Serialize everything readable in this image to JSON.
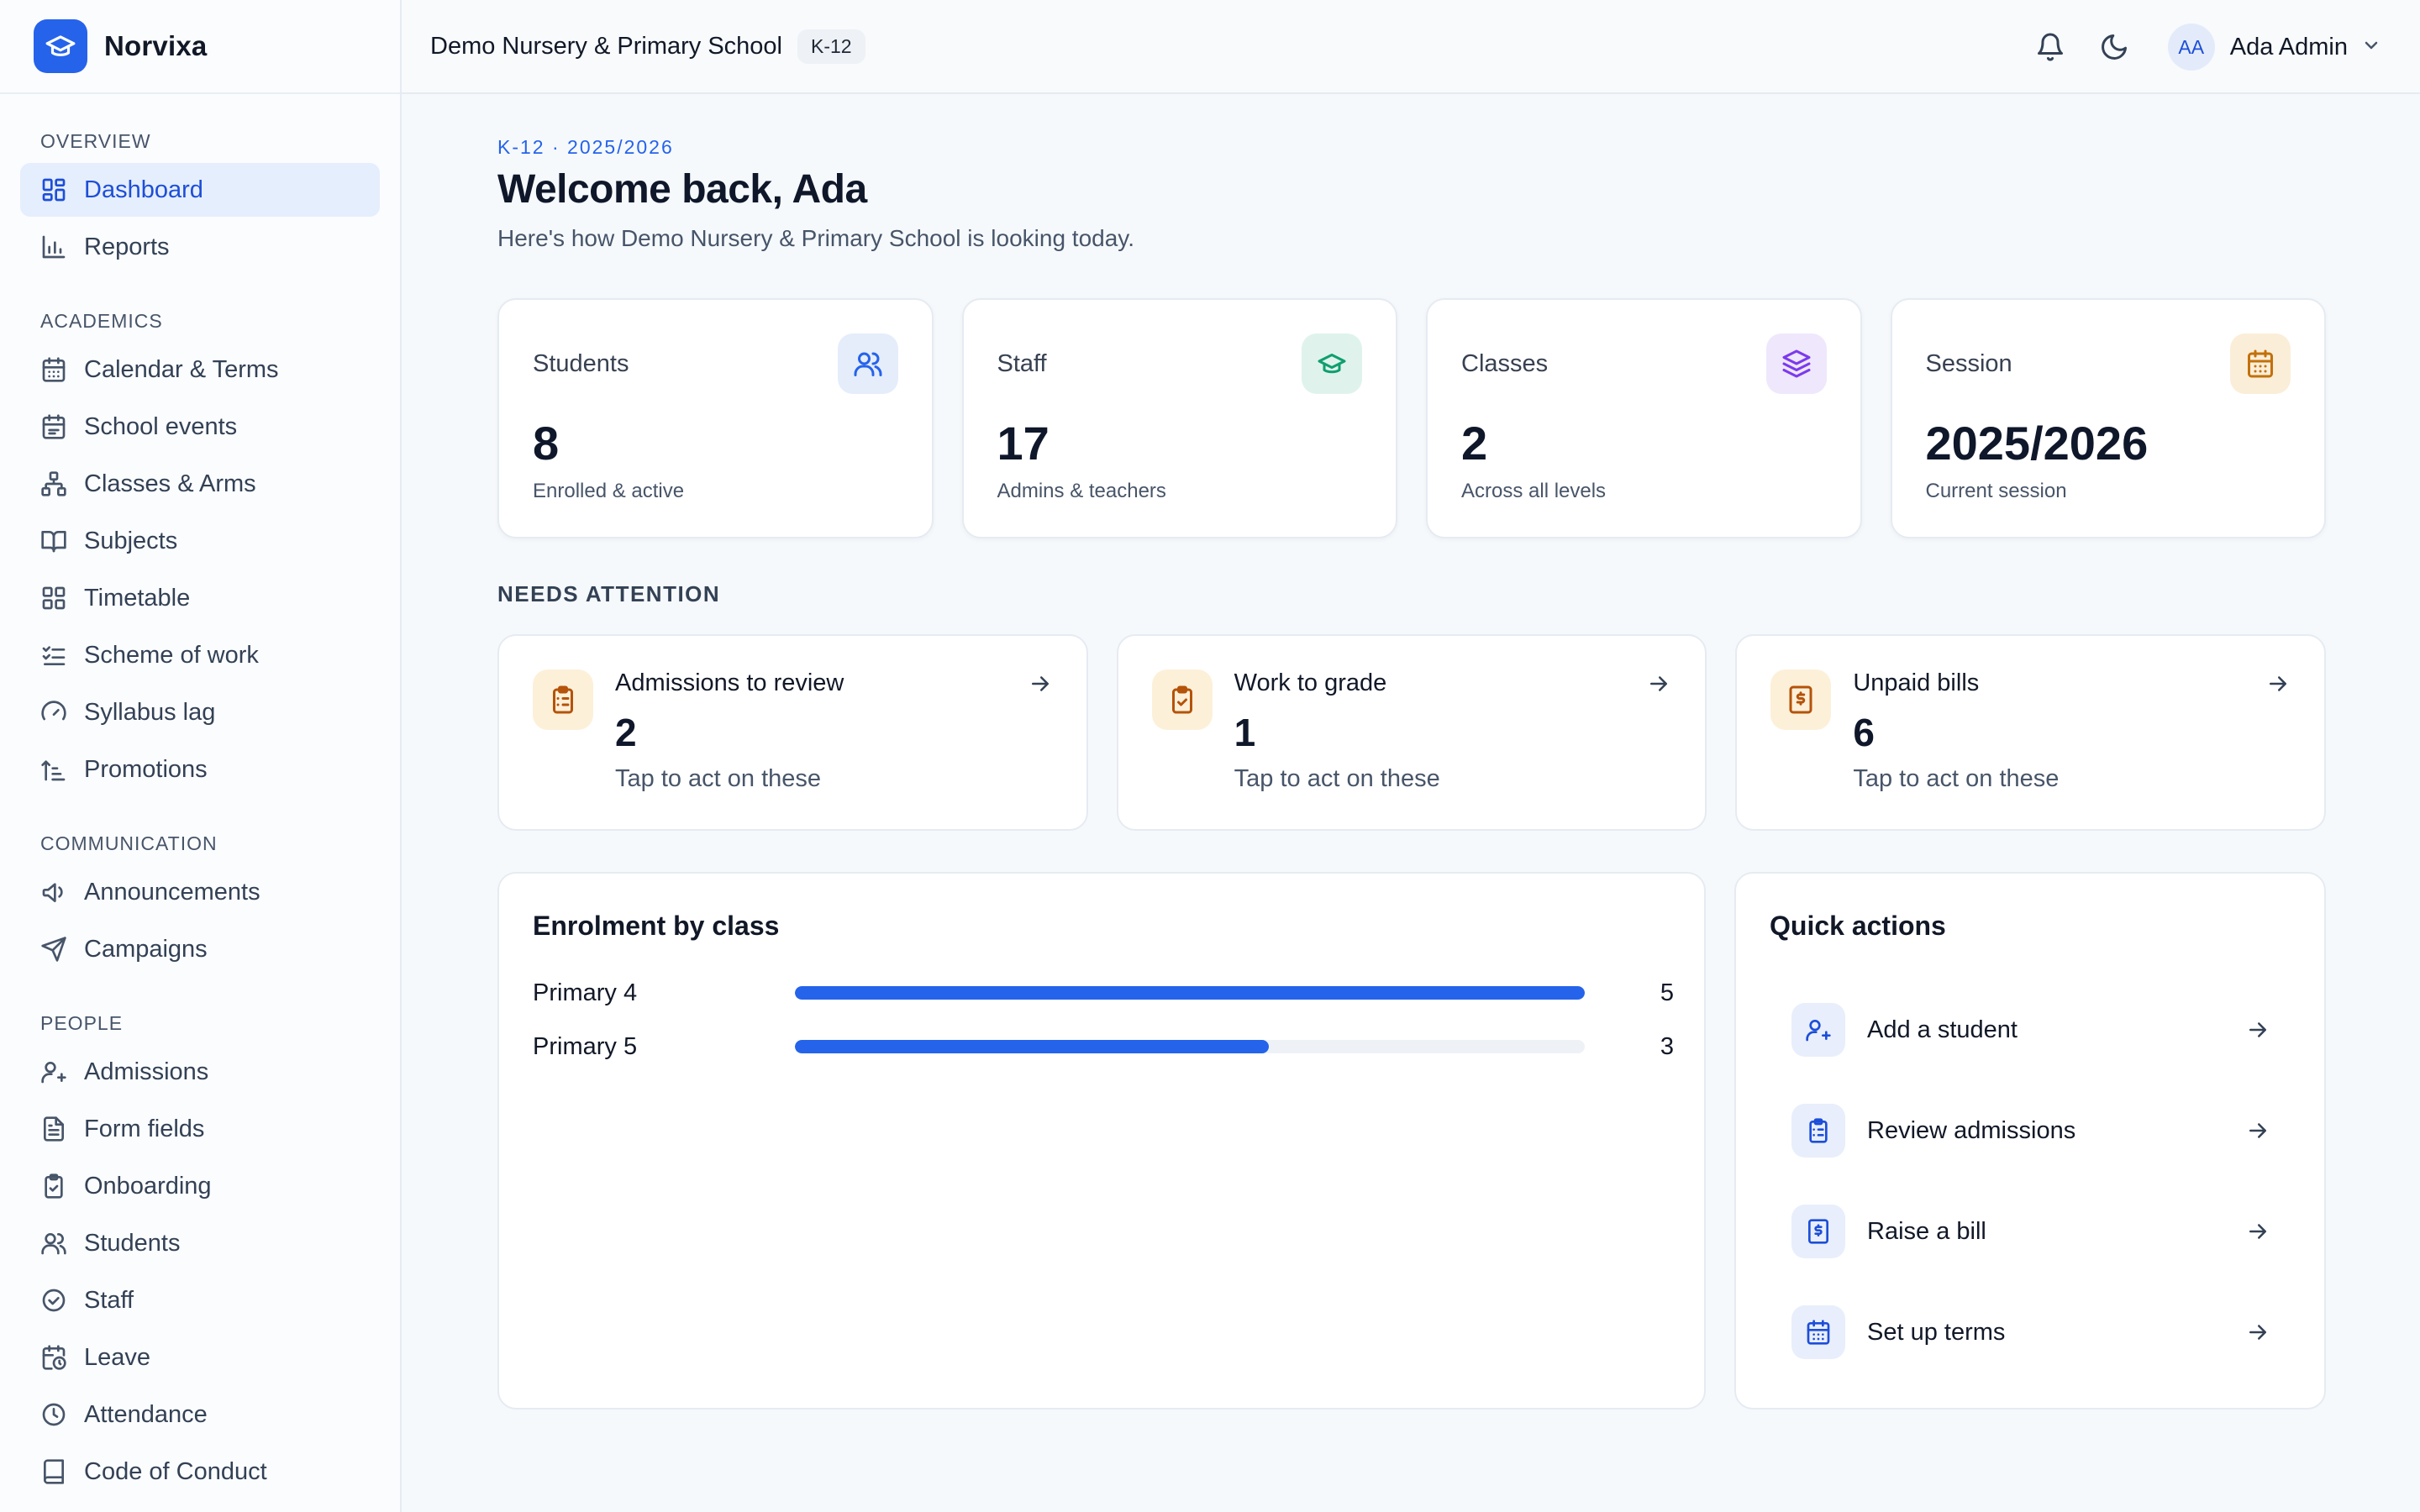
{
  "brand": {
    "name": "Norvixa"
  },
  "sidebar": {
    "sections": [
      {
        "label": "OVERVIEW",
        "items": [
          {
            "label": "Dashboard",
            "icon": "layout-grid-icon",
            "active": true
          },
          {
            "label": "Reports",
            "icon": "bar-chart-icon"
          }
        ]
      },
      {
        "label": "ACADEMICS",
        "items": [
          {
            "label": "Calendar & Terms",
            "icon": "calendar-icon"
          },
          {
            "label": "School events",
            "icon": "calendar-event-icon"
          },
          {
            "label": "Classes & Arms",
            "icon": "hierarchy-icon"
          },
          {
            "label": "Subjects",
            "icon": "book-open-icon"
          },
          {
            "label": "Timetable",
            "icon": "grid-icon"
          },
          {
            "label": "Scheme of work",
            "icon": "list-check-icon"
          },
          {
            "label": "Syllabus lag",
            "icon": "gauge-icon"
          },
          {
            "label": "Promotions",
            "icon": "arrow-up-steps-icon"
          }
        ]
      },
      {
        "label": "COMMUNICATION",
        "items": [
          {
            "label": "Announcements",
            "icon": "megaphone-icon"
          },
          {
            "label": "Campaigns",
            "icon": "send-icon"
          }
        ]
      },
      {
        "label": "PEOPLE",
        "items": [
          {
            "label": "Admissions",
            "icon": "user-plus-icon"
          },
          {
            "label": "Form fields",
            "icon": "file-text-icon"
          },
          {
            "label": "Onboarding",
            "icon": "clipboard-check-icon"
          },
          {
            "label": "Students",
            "icon": "users-icon"
          },
          {
            "label": "Staff",
            "icon": "badge-check-icon"
          },
          {
            "label": "Leave",
            "icon": "calendar-clock-icon"
          },
          {
            "label": "Attendance",
            "icon": "clock-icon"
          },
          {
            "label": "Code of Conduct",
            "icon": "book-icon"
          }
        ]
      }
    ]
  },
  "topbar": {
    "school_name": "Demo Nursery & Primary School",
    "grade_chip": "K-12",
    "user": {
      "initials": "AA",
      "name": "Ada Admin"
    }
  },
  "header": {
    "eyebrow": "K-12 · 2025/2026",
    "title": "Welcome back, Ada",
    "subtitle": "Here's how Demo Nursery & Primary School is looking today."
  },
  "stats": [
    {
      "label": "Students",
      "value": "8",
      "sub": "Enrolled & active",
      "icon": "users-icon",
      "bg": "#e5edfb",
      "color": "#2563eb"
    },
    {
      "label": "Staff",
      "value": "17",
      "sub": "Admins & teachers",
      "icon": "graduation-cap-icon",
      "bg": "#dff3ec",
      "color": "#0f9f6e"
    },
    {
      "label": "Classes",
      "value": "2",
      "sub": "Across all levels",
      "icon": "layers-icon",
      "bg": "#efe7fb",
      "color": "#7c3aed"
    },
    {
      "label": "Session",
      "value": "2025/2026",
      "sub": "Current session",
      "icon": "calendar-icon",
      "bg": "#fbeed8",
      "color": "#c2710c"
    }
  ],
  "attention": {
    "heading": "NEEDS ATTENTION",
    "items": [
      {
        "title": "Admissions to review",
        "count": "2",
        "sub": "Tap to act on these",
        "icon": "clipboard-list-icon"
      },
      {
        "title": "Work to grade",
        "count": "1",
        "sub": "Tap to act on these",
        "icon": "clipboard-check-icon"
      },
      {
        "title": "Unpaid bills",
        "count": "6",
        "sub": "Tap to act on these",
        "icon": "receipt-icon"
      }
    ]
  },
  "chart_data": {
    "type": "bar",
    "title": "Enrolment by class",
    "categories": [
      "Primary 4",
      "Primary 5"
    ],
    "values": [
      5,
      3
    ],
    "xlim": [
      0,
      5
    ],
    "color": "#2563eb"
  },
  "quick_actions": {
    "title": "Quick actions",
    "items": [
      {
        "label": "Add a student",
        "icon": "user-plus-icon"
      },
      {
        "label": "Review admissions",
        "icon": "clipboard-list-icon"
      },
      {
        "label": "Raise a bill",
        "icon": "receipt-icon"
      },
      {
        "label": "Set up terms",
        "icon": "calendar-icon"
      }
    ]
  }
}
